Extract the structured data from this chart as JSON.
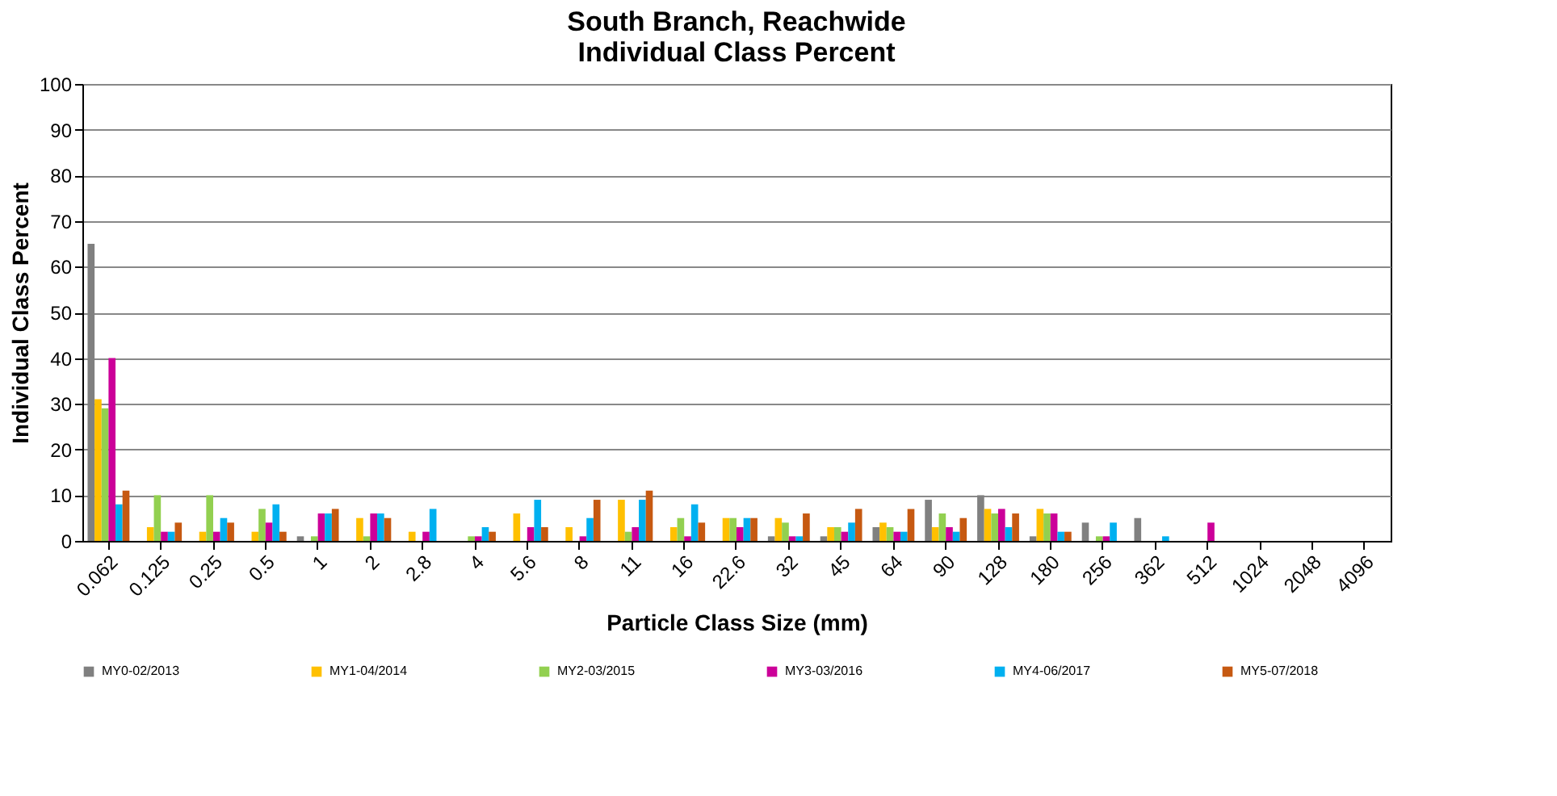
{
  "chart_data": {
    "type": "bar",
    "title": [
      "South Branch, Reachwide",
      "Individual Class Percent"
    ],
    "xlabel": "Particle Class Size (mm)",
    "ylabel": "Individual Class Percent",
    "categories": [
      "0.062",
      "0.125",
      "0.25",
      "0.5",
      "1",
      "2",
      "2.8",
      "4",
      "5.6",
      "8",
      "11",
      "16",
      "22.6",
      "32",
      "45",
      "64",
      "90",
      "128",
      "180",
      "256",
      "362",
      "512",
      "1024",
      "2048",
      "4096"
    ],
    "series": [
      {
        "name": "MY0-02/2013",
        "color": "#808080",
        "values": [
          65,
          0,
          0,
          0,
          1,
          0,
          0,
          0,
          0,
          0,
          0,
          0,
          0,
          1,
          1,
          3,
          9,
          10,
          1,
          4,
          5,
          0,
          0,
          0,
          0
        ]
      },
      {
        "name": "MY1-04/2014",
        "color": "#ffc000",
        "values": [
          31,
          3,
          2,
          2,
          0,
          5,
          2,
          0,
          6,
          3,
          9,
          3,
          5,
          5,
          3,
          4,
          3,
          7,
          7,
          0,
          0,
          0,
          0,
          0,
          0
        ]
      },
      {
        "name": "MY2-03/2015",
        "color": "#92d050",
        "values": [
          29,
          10,
          10,
          7,
          1,
          1,
          0,
          1,
          0,
          0,
          2,
          5,
          5,
          4,
          3,
          3,
          6,
          6,
          6,
          1,
          0,
          0,
          0,
          0,
          0
        ]
      },
      {
        "name": "MY3-03/2016",
        "color": "#cc0099",
        "values": [
          40,
          2,
          2,
          4,
          6,
          6,
          2,
          1,
          3,
          1,
          3,
          1,
          3,
          1,
          2,
          2,
          3,
          7,
          6,
          1,
          0,
          4,
          0,
          0,
          0
        ]
      },
      {
        "name": "MY4-06/2017",
        "color": "#00b0f0",
        "values": [
          8,
          2,
          5,
          8,
          6,
          6,
          7,
          3,
          9,
          5,
          9,
          8,
          5,
          1,
          4,
          2,
          2,
          3,
          2,
          4,
          1,
          0,
          0,
          0,
          0
        ]
      },
      {
        "name": "MY5-07/2018",
        "color": "#c65911",
        "values": [
          11,
          4,
          4,
          2,
          7,
          5,
          0,
          2,
          3,
          9,
          11,
          4,
          5,
          6,
          7,
          7,
          5,
          6,
          2,
          0,
          0,
          0,
          0,
          0,
          0
        ]
      }
    ],
    "ylim": [
      0,
      100
    ],
    "yticks": [
      0,
      10,
      20,
      30,
      40,
      50,
      60,
      70,
      80,
      90,
      100
    ],
    "grid": "y",
    "legend": "bottom"
  }
}
